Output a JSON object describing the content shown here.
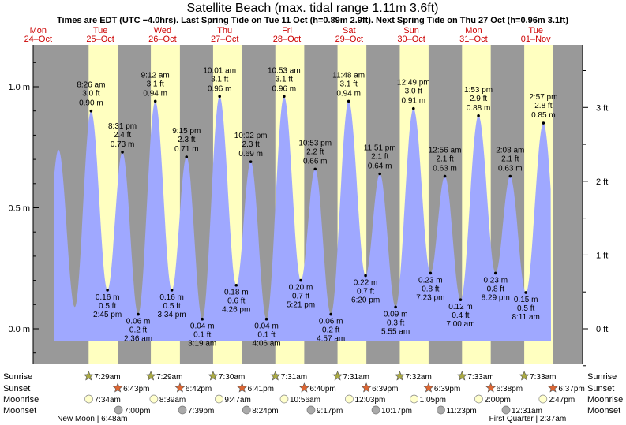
{
  "header": {
    "title": "Satellite Beach (max. tidal range 1.11m 3.6ft)",
    "subtitle": "Times are EDT (UTC −4.0hrs). Last Spring Tide on Tue 11 Oct (h=0.89m 2.9ft). Next Spring Tide on Thu 27 Oct (h=0.96m 3.1ft)"
  },
  "colors": {
    "night": "#999999",
    "day": "#ffffc0",
    "water": "#9fa8ff",
    "day_label": "#cc0000",
    "sun_icon": "#aaaa44",
    "sunset_icon": "#dd6633",
    "moon_icon": "#ffffcc",
    "moonset_icon": "#aaaaaa"
  },
  "chart_data": {
    "type": "area",
    "left_axis": {
      "unit": "m",
      "ticks": [
        "0.0 m",
        "0.5 m",
        "1.0 m"
      ],
      "tick_values": [
        0,
        0.5,
        1.0
      ]
    },
    "right_axis": {
      "unit": "ft",
      "ticks": [
        "0 ft",
        "1 ft",
        "2 ft",
        "3 ft"
      ],
      "tick_values": [
        0,
        1,
        2,
        3
      ]
    },
    "ylim_m": [
      -0.15,
      1.2
    ],
    "days": [
      {
        "dow": "Mon",
        "date": "24–Oct"
      },
      {
        "dow": "Tue",
        "date": "25–Oct"
      },
      {
        "dow": "Wed",
        "date": "26–Oct"
      },
      {
        "dow": "Thu",
        "date": "27–Oct"
      },
      {
        "dow": "Fri",
        "date": "28–Oct"
      },
      {
        "dow": "Sat",
        "date": "29–Oct"
      },
      {
        "dow": "Sun",
        "date": "30–Oct"
      },
      {
        "dow": "Mon",
        "date": "31–Oct"
      },
      {
        "dow": "Tue",
        "date": "01–Nov"
      }
    ],
    "daylight": [
      {
        "rise": "7:29am",
        "set": "6:43pm"
      },
      {
        "rise": "7:29am",
        "set": "6:42pm"
      },
      {
        "rise": "7:30am",
        "set": "6:41pm"
      },
      {
        "rise": "7:31am",
        "set": "6:40pm"
      },
      {
        "rise": "7:31am",
        "set": "6:39pm"
      },
      {
        "rise": "7:32am",
        "set": "6:39pm"
      },
      {
        "rise": "7:33am",
        "set": "6:38pm"
      },
      {
        "rise": "7:33am",
        "set": "6:37pm"
      }
    ],
    "tides": [
      {
        "day": 1,
        "time": "8:26 am",
        "ft": "3.0 ft",
        "m": 0.9,
        "m_label": "0.90 m",
        "type": "high"
      },
      {
        "day": 1,
        "time": "2:45 pm",
        "ft": "0.5 ft",
        "m": 0.16,
        "m_label": "0.16 m",
        "type": "low"
      },
      {
        "day": 1,
        "time": "8:31 pm",
        "ft": "2.4 ft",
        "m": 0.73,
        "m_label": "0.73 m",
        "type": "high"
      },
      {
        "day": 2,
        "time": "2:36 am",
        "ft": "0.2 ft",
        "m": 0.06,
        "m_label": "0.06 m",
        "type": "low"
      },
      {
        "day": 2,
        "time": "9:12 am",
        "ft": "3.1 ft",
        "m": 0.94,
        "m_label": "0.94 m",
        "type": "high"
      },
      {
        "day": 2,
        "time": "3:34 pm",
        "ft": "0.5 ft",
        "m": 0.16,
        "m_label": "0.16 m",
        "type": "low"
      },
      {
        "day": 2,
        "time": "9:15 pm",
        "ft": "2.3 ft",
        "m": 0.71,
        "m_label": "0.71 m",
        "type": "high"
      },
      {
        "day": 3,
        "time": "3:19 am",
        "ft": "0.1 ft",
        "m": 0.04,
        "m_label": "0.04 m",
        "type": "low"
      },
      {
        "day": 3,
        "time": "10:01 am",
        "ft": "3.1 ft",
        "m": 0.96,
        "m_label": "0.96 m",
        "type": "high"
      },
      {
        "day": 3,
        "time": "4:26 pm",
        "ft": "0.6 ft",
        "m": 0.18,
        "m_label": "0.18 m",
        "type": "low"
      },
      {
        "day": 3,
        "time": "10:02 pm",
        "ft": "2.3 ft",
        "m": 0.69,
        "m_label": "0.69 m",
        "type": "high"
      },
      {
        "day": 4,
        "time": "4:06 am",
        "ft": "0.1 ft",
        "m": 0.04,
        "m_label": "0.04 m",
        "type": "low"
      },
      {
        "day": 4,
        "time": "10:53 am",
        "ft": "3.1 ft",
        "m": 0.96,
        "m_label": "0.96 m",
        "type": "high"
      },
      {
        "day": 4,
        "time": "5:21 pm",
        "ft": "0.7 ft",
        "m": 0.2,
        "m_label": "0.20 m",
        "type": "low"
      },
      {
        "day": 4,
        "time": "10:53 pm",
        "ft": "2.2 ft",
        "m": 0.66,
        "m_label": "0.66 m",
        "type": "high"
      },
      {
        "day": 5,
        "time": "4:57 am",
        "ft": "0.2 ft",
        "m": 0.06,
        "m_label": "0.06 m",
        "type": "low"
      },
      {
        "day": 5,
        "time": "11:48 am",
        "ft": "3.1 ft",
        "m": 0.94,
        "m_label": "0.94 m",
        "type": "high"
      },
      {
        "day": 5,
        "time": "6:20 pm",
        "ft": "0.7 ft",
        "m": 0.22,
        "m_label": "0.22 m",
        "type": "low"
      },
      {
        "day": 5,
        "time": "11:51 pm",
        "ft": "2.1 ft",
        "m": 0.64,
        "m_label": "0.64 m",
        "type": "high"
      },
      {
        "day": 6,
        "time": "5:55 am",
        "ft": "0.3 ft",
        "m": 0.09,
        "m_label": "0.09 m",
        "type": "low"
      },
      {
        "day": 6,
        "time": "12:49 pm",
        "ft": "3.0 ft",
        "m": 0.91,
        "m_label": "0.91 m",
        "type": "high"
      },
      {
        "day": 6,
        "time": "7:23 pm",
        "ft": "0.8 ft",
        "m": 0.23,
        "m_label": "0.23 m",
        "type": "low"
      },
      {
        "day": 7,
        "time": "12:56 am",
        "ft": "2.1 ft",
        "m": 0.63,
        "m_label": "0.63 m",
        "type": "high"
      },
      {
        "day": 7,
        "time": "7:00 am",
        "ft": "0.4 ft",
        "m": 0.12,
        "m_label": "0.12 m",
        "type": "low"
      },
      {
        "day": 7,
        "time": "1:53 pm",
        "ft": "2.9 ft",
        "m": 0.88,
        "m_label": "0.88 m",
        "type": "high"
      },
      {
        "day": 7,
        "time": "8:29 pm",
        "ft": "0.8 ft",
        "m": 0.23,
        "m_label": "0.23 m",
        "type": "low"
      },
      {
        "day": 8,
        "time": "2:08 am",
        "ft": "2.1 ft",
        "m": 0.63,
        "m_label": "0.63 m",
        "type": "high"
      },
      {
        "day": 8,
        "time": "8:11 am",
        "ft": "0.5 ft",
        "m": 0.15,
        "m_label": "0.15 m",
        "type": "low"
      },
      {
        "day": 8,
        "time": "2:57 pm",
        "ft": "2.8 ft",
        "m": 0.85,
        "m_label": "0.85 m",
        "type": "high"
      }
    ]
  },
  "rows": {
    "labels": [
      "Sunrise",
      "Sunset",
      "Moonrise",
      "Moonset"
    ],
    "moonrise": [
      {
        "day": 1,
        "time": "7:34am"
      },
      {
        "day": 2,
        "time": "8:39am"
      },
      {
        "day": 3,
        "time": "9:47am"
      },
      {
        "day": 4,
        "time": "10:56am"
      },
      {
        "day": 5,
        "time": "12:03pm"
      },
      {
        "day": 6,
        "time": "1:05pm"
      },
      {
        "day": 7,
        "time": "2:00pm"
      },
      {
        "day": 8,
        "time": "2:47pm"
      }
    ],
    "moonset": [
      {
        "day": 1,
        "time": "7:00pm"
      },
      {
        "day": 2,
        "time": "7:39pm"
      },
      {
        "day": 3,
        "time": "8:24pm"
      },
      {
        "day": 4,
        "time": "9:17pm"
      },
      {
        "day": 5,
        "time": "10:17pm"
      },
      {
        "day": 6,
        "time": "11:23pm"
      },
      {
        "day": 8,
        "time": "12:31am"
      }
    ],
    "moon_phases": [
      {
        "text": "New Moon | 6:48am",
        "day": 1
      },
      {
        "text": "First Quarter | 2:37am",
        "day": 8
      }
    ]
  }
}
